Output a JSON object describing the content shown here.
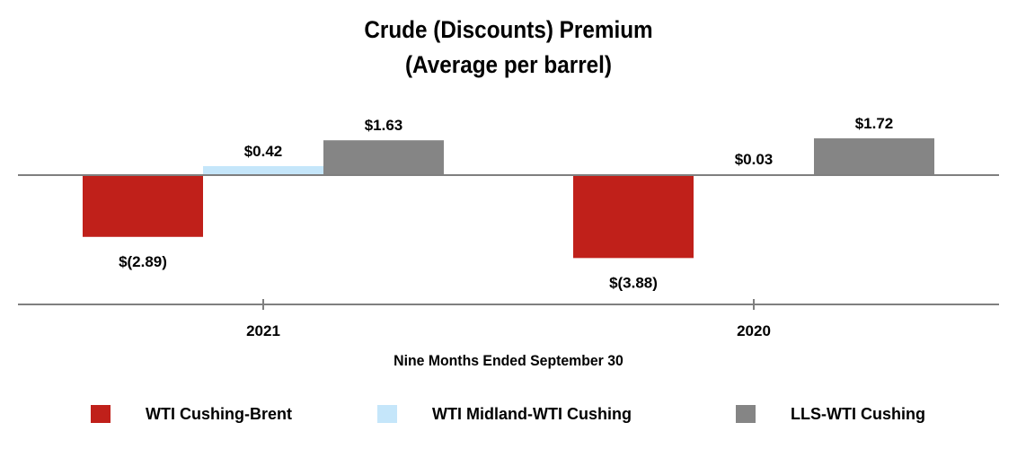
{
  "chart_data": {
    "type": "bar",
    "title_line1": "Crude (Discounts) Premium",
    "title_line2": "(Average per barrel)",
    "xlabel": "Nine Months Ended September 30",
    "ylabel": "",
    "categories": [
      "2021",
      "2020"
    ],
    "series": [
      {
        "name": "WTI Cushing-Brent",
        "color": "#C0201A",
        "values": [
          -2.89,
          -3.88
        ],
        "labels": [
          "$(2.89)",
          "$(3.88)"
        ]
      },
      {
        "name": "WTI Midland-WTI Cushing",
        "color": "#C5E6FA",
        "values": [
          0.42,
          0.03
        ],
        "labels": [
          "$0.42",
          "$0.03"
        ]
      },
      {
        "name": "LLS-WTI Cushing",
        "color": "#858585",
        "values": [
          1.63,
          1.72
        ],
        "labels": [
          "$1.63",
          "$1.72"
        ]
      }
    ],
    "grid": false,
    "legend_position": "bottom"
  }
}
